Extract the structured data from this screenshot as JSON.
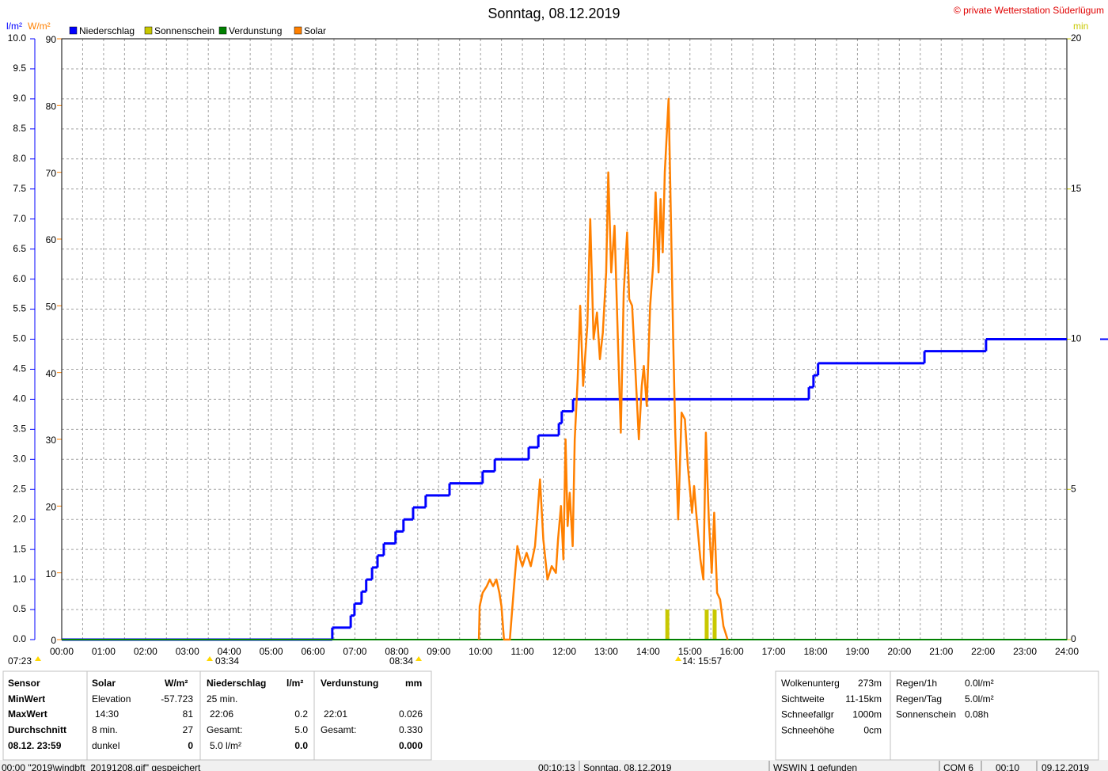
{
  "chart_data": {
    "type": "line",
    "title": "Sonntag, 08.12.2019",
    "credit": "© private Wetterstation Süderlügum",
    "y_label": "l/m²",
    "y2_label": "W/m²",
    "y3_label": "min",
    "grid": true,
    "xlim": [
      0,
      24
    ],
    "xticks": [
      {
        "value": 0,
        "label": "00:00"
      },
      {
        "value": 1,
        "label": "01:00"
      },
      {
        "value": 2,
        "label": "02:00"
      },
      {
        "value": 3,
        "label": "03:00"
      },
      {
        "value": 4,
        "label": "04:00"
      },
      {
        "value": 5,
        "label": "05:00"
      },
      {
        "value": 6,
        "label": "06:00"
      },
      {
        "value": 7,
        "label": "07:00"
      },
      {
        "value": 8,
        "label": "08:00"
      },
      {
        "value": 9,
        "label": "09:00"
      },
      {
        "value": 10,
        "label": "10:00"
      },
      {
        "value": 11,
        "label": "11:00"
      },
      {
        "value": 12,
        "label": "12:00"
      },
      {
        "value": 13,
        "label": "13:00"
      },
      {
        "value": 14,
        "label": "14:00"
      },
      {
        "value": 15,
        "label": "15:00"
      },
      {
        "value": 16,
        "label": "16:00"
      },
      {
        "value": 17,
        "label": "17:00"
      },
      {
        "value": 18,
        "label": "18:00"
      },
      {
        "value": 19,
        "label": "19:00"
      },
      {
        "value": 20,
        "label": "20:00"
      },
      {
        "value": 21,
        "label": "21:00"
      },
      {
        "value": 22,
        "label": "22:00"
      },
      {
        "value": 23,
        "label": "23:00"
      },
      {
        "value": 24,
        "label": "24:00"
      }
    ],
    "ylim": [
      0,
      10
    ],
    "yticks": [
      {
        "value": 0,
        "label": "0.0"
      },
      0.5,
      {
        "value": 1,
        "label": "1.0"
      },
      1.5,
      {
        "value": 2,
        "label": "2.0"
      },
      2.5,
      {
        "value": 3,
        "label": "3.0"
      },
      3.5,
      {
        "value": 4,
        "label": "4.0"
      },
      4.5,
      {
        "value": 5,
        "label": "5.0"
      },
      5.5,
      {
        "value": 6,
        "label": "6.0"
      },
      6.5,
      {
        "value": 7,
        "label": "7.0"
      },
      7.5,
      {
        "value": 8,
        "label": "8.0"
      },
      8.5,
      {
        "value": 9,
        "label": "9.0"
      },
      9.5,
      {
        "value": 10,
        "label": "10.0"
      }
    ],
    "y2lim": [
      0,
      90
    ],
    "y2ticks": [
      0,
      10,
      20,
      30,
      40,
      50,
      60,
      70,
      80,
      90
    ],
    "y3lim": [
      0,
      20
    ],
    "y3ticks": [
      0,
      5,
      10,
      15,
      20
    ],
    "series": [
      {
        "name": "Niederschlag",
        "type": "step",
        "color": "#0000ff",
        "axis": "y",
        "x": [
          0,
          6.46,
          6.9,
          6.99,
          7.16,
          7.27,
          7.41,
          7.54,
          7.69,
          7.97,
          8.16,
          8.39,
          8.69,
          9.26,
          10.05,
          10.34,
          11.15,
          11.38,
          11.87,
          11.94,
          12.21,
          17.84,
          17.95,
          18.06,
          20.6,
          22.07,
          24
        ],
        "values": [
          0,
          0.2,
          0.4,
          0.6,
          0.8,
          1.0,
          1.2,
          1.4,
          1.6,
          1.8,
          2.0,
          2.2,
          2.4,
          2.6,
          2.8,
          3.0,
          3.2,
          3.4,
          3.6,
          3.8,
          4.0,
          4.2,
          4.4,
          4.6,
          4.8,
          5.0,
          5.0
        ]
      },
      {
        "name": "Sonnenschein",
        "type": "bar",
        "color": "#c8c800",
        "axis": "y3",
        "x": [
          14.46,
          15.4,
          15.59
        ],
        "values": [
          1,
          1,
          1
        ]
      },
      {
        "name": "Verdunstung",
        "type": "line",
        "color": "#008000",
        "axis": "y",
        "x": [
          0,
          24
        ],
        "values": [
          0,
          0
        ]
      },
      {
        "name": "Solar",
        "type": "line",
        "color": "#ff8000",
        "axis": "y2",
        "x": [
          9.96,
          9.98,
          10.05,
          10.15,
          10.22,
          10.3,
          10.38,
          10.45,
          10.5,
          10.56,
          10.7,
          10.8,
          10.88,
          10.95,
          11.0,
          11.1,
          11.2,
          11.3,
          11.35,
          11.42,
          11.5,
          11.6,
          11.7,
          11.8,
          11.85,
          11.92,
          11.98,
          12.03,
          12.08,
          12.13,
          12.2,
          12.25,
          12.32,
          12.38,
          12.45,
          12.55,
          12.62,
          12.7,
          12.78,
          12.85,
          12.92,
          13.0,
          13.05,
          13.12,
          13.2,
          13.28,
          13.35,
          13.42,
          13.5,
          13.55,
          13.62,
          13.7,
          13.78,
          13.85,
          13.9,
          13.97,
          14.05,
          14.12,
          14.18,
          14.25,
          14.3,
          14.35,
          14.4,
          14.49,
          14.55,
          14.6,
          14.65,
          14.72,
          14.8,
          14.88,
          14.95,
          15.05,
          15.1,
          15.15,
          15.25,
          15.32,
          15.38,
          15.45,
          15.52,
          15.58,
          15.65,
          15.72,
          15.8,
          15.9
        ],
        "values": [
          0,
          5,
          7,
          8,
          9,
          8,
          9,
          7,
          5,
          0,
          0,
          8,
          14,
          12,
          11,
          13,
          11,
          14,
          18,
          24,
          15,
          9,
          11,
          10,
          15,
          20,
          12,
          30,
          17,
          22,
          14,
          30,
          39,
          50,
          38,
          47,
          63,
          45,
          49,
          42,
          46,
          55,
          70,
          55,
          62,
          45,
          31,
          52,
          61,
          51,
          50,
          40,
          30,
          38,
          41,
          35,
          50,
          56,
          67,
          55,
          66,
          58,
          70,
          81,
          62,
          45,
          31,
          18,
          34,
          33,
          26,
          19,
          23,
          19,
          12,
          9,
          31,
          18,
          10,
          19,
          7,
          6,
          2,
          0
        ]
      }
    ],
    "markers": [
      "07:23",
      "03:34",
      "08:34",
      "14: 15:57"
    ]
  },
  "stats": {
    "sensor": {
      "title": "Sensor",
      "min": "MinWert",
      "max": "MaxWert",
      "avg": "Durchschnitt",
      "now": "08.12. 23:59"
    },
    "solar": {
      "title": "Solar",
      "unit": "W/m²",
      "min": {
        "label": "Elevation",
        "value": "-57.723"
      },
      "max": {
        "label": "14:30",
        "value": "81"
      },
      "avg": {
        "label": "8 min.",
        "value": "27"
      },
      "now": {
        "label": "dunkel",
        "value": "0"
      }
    },
    "niederschlag": {
      "title": "Niederschlag",
      "unit": "l/m²",
      "min": {
        "label": "25 min."
      },
      "max": {
        "label": "22:06",
        "value": "0.2"
      },
      "avg": {
        "label": "Gesamt:",
        "value": "5.0"
      },
      "now": {
        "label": "5.0 l/m²",
        "value": "0.0"
      }
    },
    "verdunstung": {
      "title": "Verdunstung",
      "unit": "mm",
      "max": {
        "label": "22:01",
        "value": "0.026"
      },
      "avg": {
        "label": "Gesamt:",
        "value": "0.330"
      },
      "now": {
        "value": "0.000"
      }
    }
  },
  "weather": [
    [
      [
        "Wolkenunterg",
        "273m"
      ],
      [
        "Sichtweite",
        "11-15km"
      ],
      [
        "Schneefallgr",
        "1000m"
      ],
      [
        "Schneehöhe",
        "0cm"
      ]
    ],
    [
      [
        "Regen/1h",
        "0.0l/m²"
      ],
      [
        "Regen/Tag",
        "5.0l/m²"
      ],
      [
        "Sonnenschein",
        "0.08h"
      ]
    ]
  ],
  "status_bar": [
    "00:00 \"2019\\windbft_20191208.gif\" gespeichert",
    "00:10:13",
    "Sonntag, 08.12.2019",
    "WSWIN 1 gefunden",
    "COM 6",
    "00:10",
    "09.12.2019"
  ]
}
